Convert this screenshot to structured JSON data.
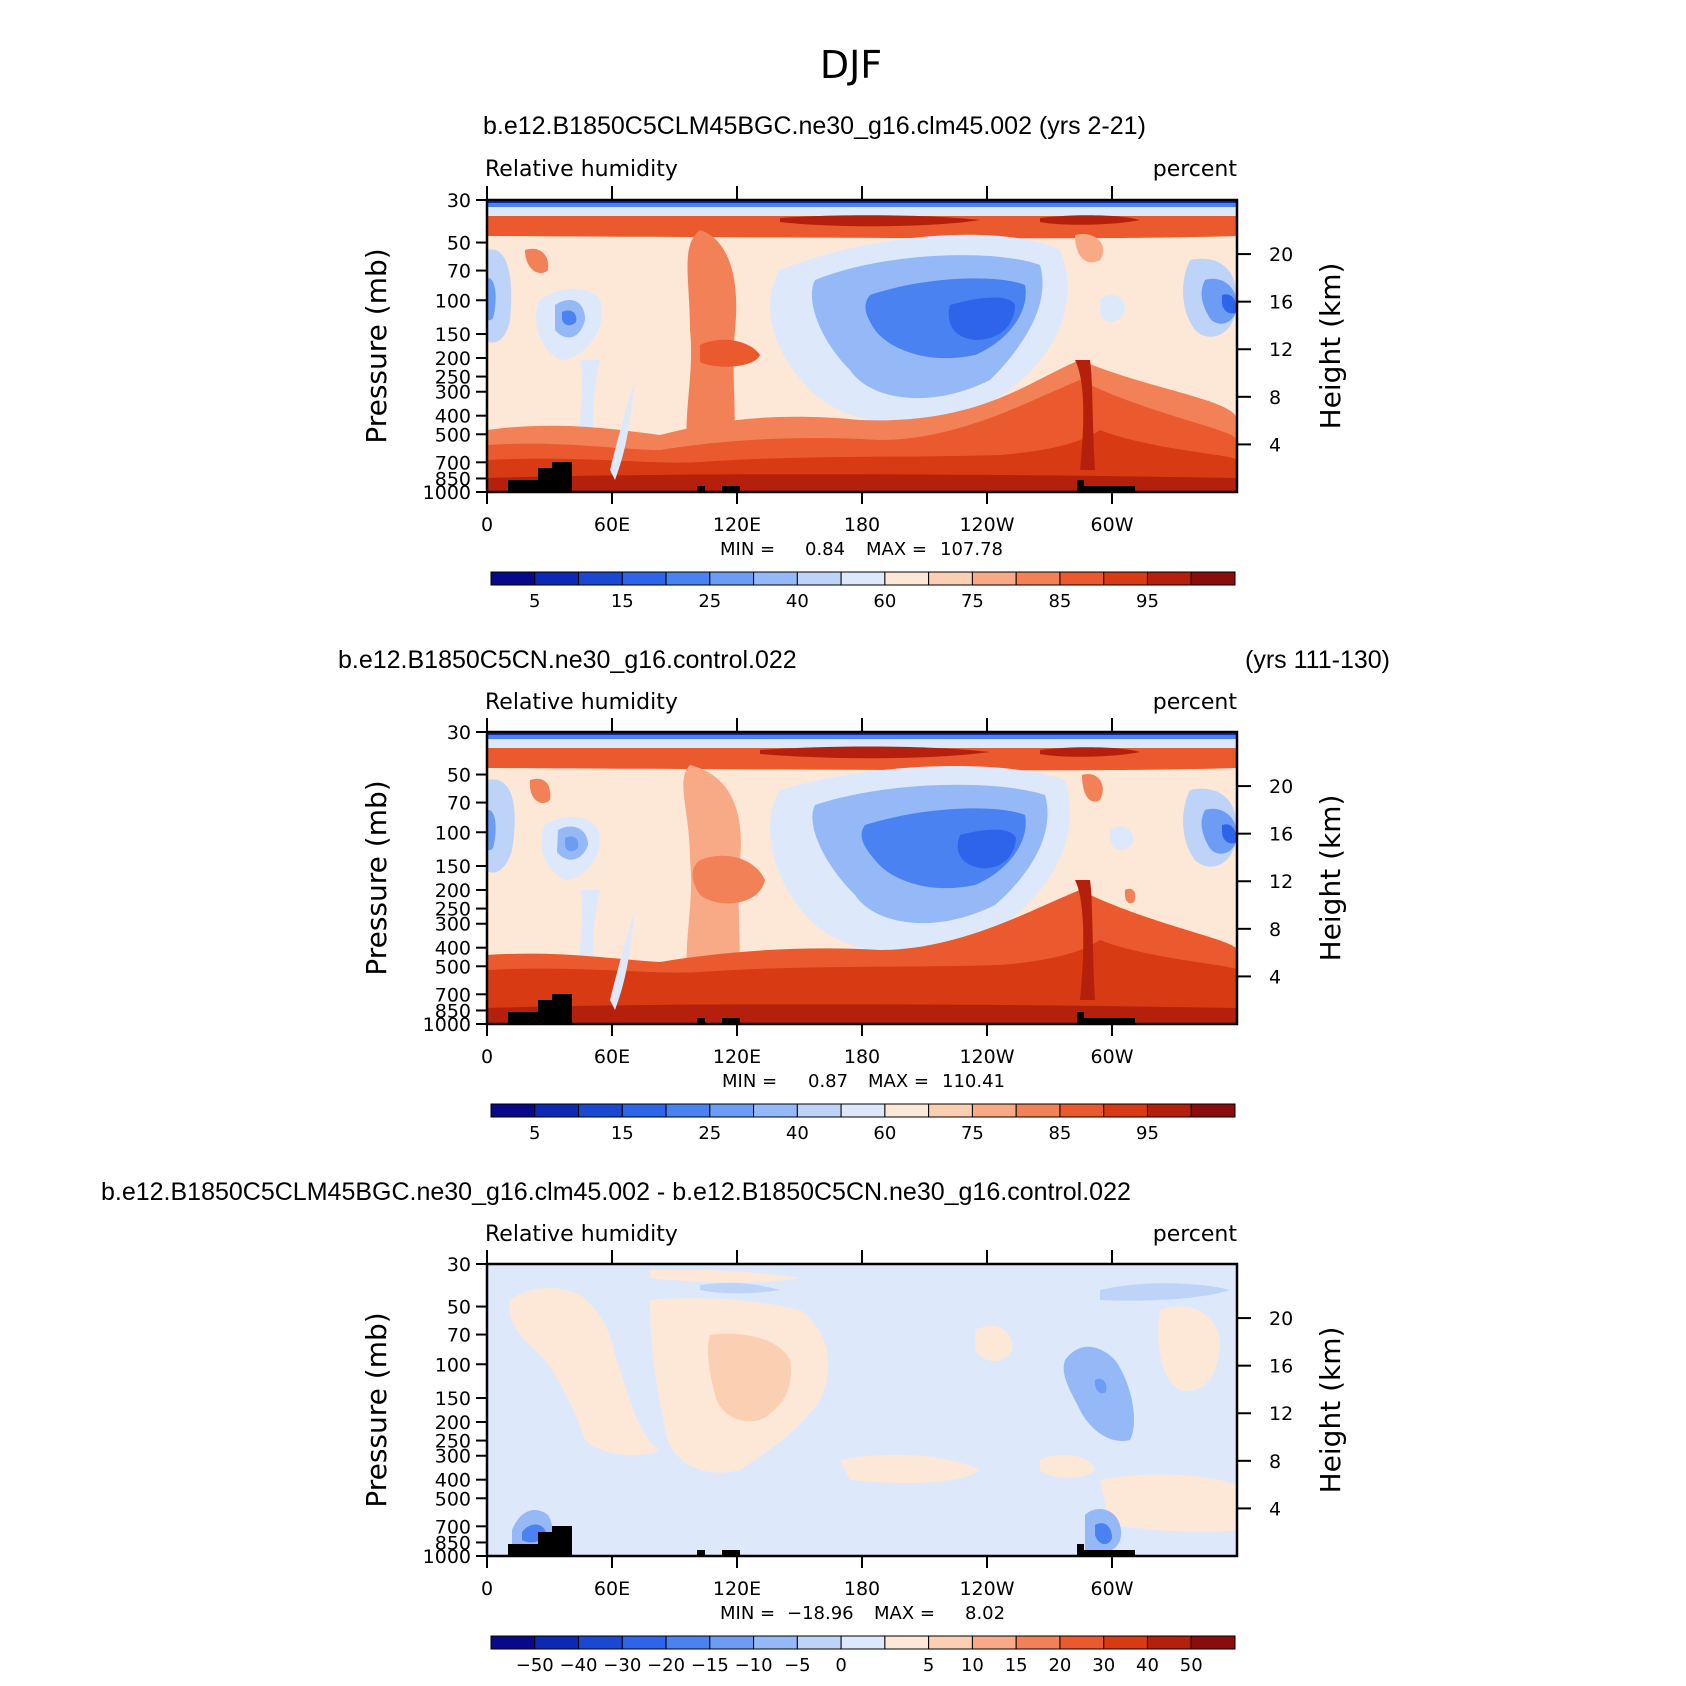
{
  "figure_title": "DJF",
  "chart_data": [
    {
      "type": "heatmap",
      "title_left": "b.e12.B1850C5CLM45BGC.ne30_g16.clm45.002 (yrs 2-21)",
      "title_right": "",
      "subtitle_left": "Relative humidity",
      "subtitle_right": "percent",
      "ylabel": "Pressure (mb)",
      "ylabel_right": "Height (km)",
      "xticks": [
        "0",
        "60E",
        "120E",
        "180",
        "120W",
        "60W"
      ],
      "xtick_values": [
        0,
        60,
        120,
        180,
        240,
        300
      ],
      "xlim": [
        0,
        360
      ],
      "yticks": [
        "30",
        "50",
        "70",
        "100",
        "150",
        "200",
        "250",
        "300",
        "400",
        "500",
        "700",
        "850",
        "1000"
      ],
      "ytick_values": [
        30,
        50,
        70,
        100,
        150,
        200,
        250,
        300,
        400,
        500,
        700,
        850,
        1000
      ],
      "ylim": [
        1000,
        30
      ],
      "height_ticks": [
        "20",
        "16",
        "12",
        "8",
        "4"
      ],
      "height_values": [
        20,
        16,
        12,
        8,
        4
      ],
      "min_label": "MIN =",
      "min_value": "0.84",
      "max_label": "MAX =",
      "max_value": "107.78",
      "colorbar_labels": [
        "5",
        "15",
        "25",
        "40",
        "60",
        "75",
        "85",
        "95"
      ],
      "colorbar_levels": [
        0,
        5,
        10,
        15,
        20,
        25,
        30,
        40,
        50,
        60,
        70,
        75,
        80,
        85,
        90,
        95,
        100
      ]
    },
    {
      "type": "heatmap",
      "title_left": "b.e12.B1850C5CN.ne30_g16.control.022",
      "title_right": "(yrs 111-130)",
      "subtitle_left": "Relative humidity",
      "subtitle_right": "percent",
      "ylabel": "Pressure (mb)",
      "ylabel_right": "Height (km)",
      "xticks": [
        "0",
        "60E",
        "120E",
        "180",
        "120W",
        "60W"
      ],
      "xtick_values": [
        0,
        60,
        120,
        180,
        240,
        300
      ],
      "xlim": [
        0,
        360
      ],
      "yticks": [
        "30",
        "50",
        "70",
        "100",
        "150",
        "200",
        "250",
        "300",
        "400",
        "500",
        "700",
        "850",
        "1000"
      ],
      "ytick_values": [
        30,
        50,
        70,
        100,
        150,
        200,
        250,
        300,
        400,
        500,
        700,
        850,
        1000
      ],
      "ylim": [
        1000,
        30
      ],
      "height_ticks": [
        "20",
        "16",
        "12",
        "8",
        "4"
      ],
      "height_values": [
        20,
        16,
        12,
        8,
        4
      ],
      "min_label": "MIN =",
      "min_value": "0.87",
      "max_label": "MAX =",
      "max_value": "110.41",
      "colorbar_labels": [
        "5",
        "15",
        "25",
        "40",
        "60",
        "75",
        "85",
        "95"
      ],
      "colorbar_levels": [
        0,
        5,
        10,
        15,
        20,
        25,
        30,
        40,
        50,
        60,
        70,
        75,
        80,
        85,
        90,
        95,
        100
      ]
    },
    {
      "type": "heatmap",
      "title_left": "b.e12.B1850C5CLM45BGC.ne30_g16.clm45.002 - b.e12.B1850C5CN.ne30_g16.control.022",
      "title_right": "",
      "subtitle_left": "Relative humidity",
      "subtitle_right": "percent",
      "ylabel": "Pressure (mb)",
      "ylabel_right": "Height (km)",
      "xticks": [
        "0",
        "60E",
        "120E",
        "180",
        "120W",
        "60W"
      ],
      "xtick_values": [
        0,
        60,
        120,
        180,
        240,
        300
      ],
      "xlim": [
        0,
        360
      ],
      "yticks": [
        "30",
        "50",
        "70",
        "100",
        "150",
        "200",
        "250",
        "300",
        "400",
        "500",
        "700",
        "850",
        "1000"
      ],
      "ytick_values": [
        30,
        50,
        70,
        100,
        150,
        200,
        250,
        300,
        400,
        500,
        700,
        850,
        1000
      ],
      "ylim": [
        1000,
        30
      ],
      "height_ticks": [
        "20",
        "16",
        "12",
        "8",
        "4"
      ],
      "height_values": [
        20,
        16,
        12,
        8,
        4
      ],
      "min_label": "MIN =",
      "min_value": "−18.96",
      "max_label": "MAX =",
      "max_value": "8.02",
      "colorbar_labels": [
        "−50",
        "−40",
        "−30",
        "−20",
        "−15",
        "−10",
        "−5",
        "0",
        "5",
        "10",
        "15",
        "20",
        "30",
        "40",
        "50"
      ],
      "colorbar_levels": [
        -60,
        -50,
        -40,
        -30,
        -20,
        -15,
        -10,
        -5,
        0,
        5,
        10,
        15,
        20,
        30,
        40,
        50,
        60
      ]
    }
  ],
  "colormap": [
    "#08088a",
    "#0c28b4",
    "#1a48d2",
    "#2e64ea",
    "#4a82f2",
    "#6d9cf4",
    "#95b8f6",
    "#bed3f8",
    "#dde8fb",
    "#fde8d8",
    "#fbcfb2",
    "#f7aa85",
    "#f28158",
    "#eb5a2e",
    "#d83a14",
    "#b5200c",
    "#8a0c0c"
  ]
}
